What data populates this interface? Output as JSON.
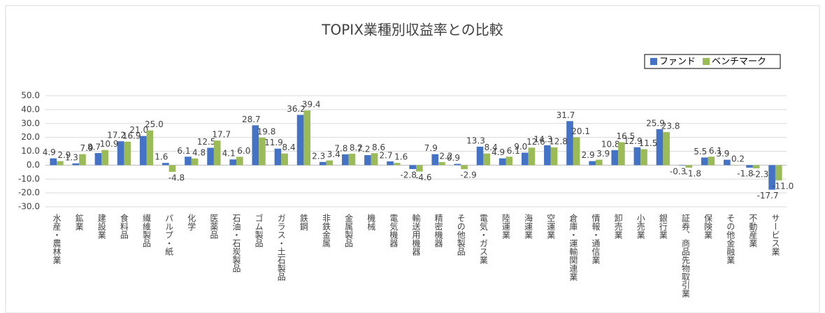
{
  "chart_data": {
    "type": "bar",
    "title": "TOPIX業種別収益率との比較",
    "categories": [
      "水産・農林業",
      "鉱業",
      "建設業",
      "食料品",
      "繊維製品",
      "パルプ・紙",
      "化学",
      "医薬品",
      "石油・石炭製品",
      "ゴム製品",
      "ガラス・土石製品",
      "鉄鋼",
      "非鉄金属",
      "金属製品",
      "機械",
      "電気機器",
      "輸送用機器",
      "精密機器",
      "その他製品",
      "電気・ガス業",
      "陸運業",
      "海運業",
      "空運業",
      "倉庫・運輸関連業",
      "情報・通信業",
      "卸売業",
      "小売業",
      "銀行業",
      "証券、商品先物取引業",
      "保険業",
      "その他金融業",
      "不動産業",
      "サービス業"
    ],
    "series": [
      {
        "name": "ファンド",
        "color": "#4472c4",
        "values": [
          4.9,
          1.3,
          8.7,
          17.2,
          21,
          1.6,
          6.1,
          12.5,
          4.1,
          28.7,
          11.9,
          36.2,
          2.3,
          7.8,
          7.2,
          2.7,
          -2.8,
          7.9,
          0.9,
          13.3,
          4.9,
          9,
          14.3,
          31.7,
          2.9,
          10.8,
          12.9,
          25.9,
          -0.3,
          5.5,
          3.9,
          -1.8,
          -17.7
        ],
        "value_labels": [
          "4.9",
          "1.3",
          "8.7",
          "17.2",
          "21.0",
          "1.6",
          "6.1",
          "12.5",
          "4.1",
          "28.7",
          "11.9",
          "36.2",
          "2.3",
          "7.8",
          "7.2",
          "2.7",
          "-2.8",
          "7.9",
          "0.9",
          "13.3",
          "4.9",
          "9.0",
          "14.3",
          "31.7",
          "2.9",
          "10.8",
          "12.9",
          "25.9",
          "-0.3",
          "5.5",
          "3.9",
          "-1.8",
          "-17.7"
        ]
      },
      {
        "name": "ベンチマーク",
        "color": "#9bbb59",
        "values": [
          2.9,
          7.9,
          10.9,
          16.9,
          25,
          -4.8,
          4.8,
          17.7,
          6,
          19.8,
          8.4,
          39.4,
          3.4,
          8.2,
          8.6,
          1.6,
          -4.6,
          2.2,
          -2.9,
          8.4,
          6.1,
          12.6,
          12.8,
          20.1,
          3.9,
          16.5,
          11.5,
          23.8,
          -1.8,
          6.1,
          0.2,
          -2.3,
          -11
        ],
        "value_labels": [
          "2.9",
          "7.9",
          "10.9",
          "16.9",
          "25.0",
          "-4.8",
          "4.8",
          "17.7",
          "6.0",
          "19.8",
          "8.4",
          "39.4",
          "3.4",
          "8.2",
          "8.6",
          "1.6",
          "-4.6",
          "2.2",
          "-2.9",
          "8.4",
          "6.1",
          "12.6",
          "12.8",
          "20.1",
          "3.9",
          "16.5",
          "11.5",
          "23.8",
          "-1.8",
          "6.1",
          "0.2",
          "-2.3",
          "-11.0"
        ]
      }
    ],
    "ylim": [
      -30,
      50
    ],
    "yticks": [
      {
        "value": -30,
        "label": "-30.0"
      },
      {
        "value": -20,
        "label": "-20.0"
      },
      {
        "value": -10,
        "label": "-10.0"
      },
      {
        "value": 0,
        "label": "0.0"
      },
      {
        "value": 10,
        "label": "10.0"
      },
      {
        "value": 20,
        "label": "20.0"
      },
      {
        "value": 30,
        "label": "30.0"
      },
      {
        "value": 40,
        "label": "40.0"
      },
      {
        "value": 50,
        "label": "50.0"
      }
    ],
    "grid": true,
    "legend": "top-right"
  }
}
